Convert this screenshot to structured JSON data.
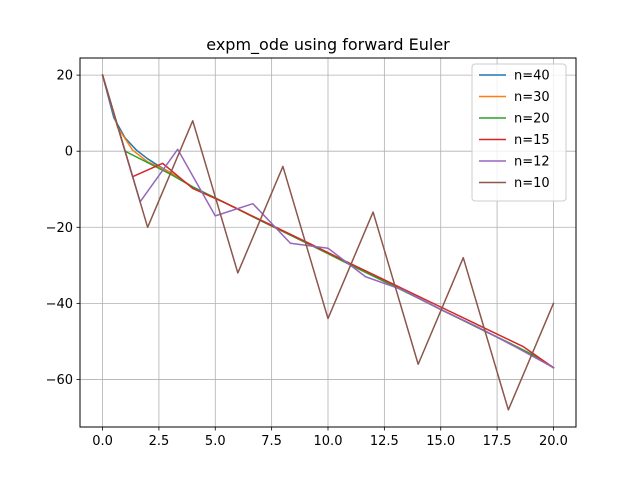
{
  "chart_data": {
    "type": "line",
    "title": "expm_ode using forward Euler",
    "xlabel": "",
    "ylabel": "",
    "xlim": [
      -1.0,
      21.0
    ],
    "ylim": [
      -72.5,
      24.5
    ],
    "xticks": [
      0.0,
      2.5,
      5.0,
      7.5,
      10.0,
      12.5,
      15.0,
      17.5,
      20.0
    ],
    "xtick_labels": [
      "0.0",
      "2.5",
      "5.0",
      "7.5",
      "10.0",
      "12.5",
      "15.0",
      "17.5",
      "20.0"
    ],
    "yticks": [
      20,
      0,
      -20,
      -40,
      -60
    ],
    "ytick_labels": [
      "20",
      "0",
      "−20",
      "−40",
      "−60"
    ],
    "grid": true,
    "legend_position": "top-right",
    "series": [
      {
        "name": "n=40",
        "color": "#1f77b4",
        "x": [
          0,
          0.5,
          1,
          1.5,
          2,
          2.5,
          3,
          3.5,
          4,
          5,
          6,
          7,
          8,
          9,
          10,
          11,
          12,
          13,
          14,
          15,
          16,
          17,
          18,
          19,
          20
        ],
        "y": [
          20,
          8.8,
          3.5,
          0.3,
          -2.0,
          -3.9,
          -5.6,
          -7.5,
          -9.4,
          -12.3,
          -15.2,
          -18.2,
          -21.1,
          -24.0,
          -26.9,
          -29.9,
          -32.8,
          -35.7,
          -38.6,
          -41.6,
          -44.5,
          -47.4,
          -50.3,
          -53.3,
          -56.9
        ]
      },
      {
        "name": "n=30",
        "color": "#ff7f0e",
        "x": [
          0,
          0.667,
          1.333,
          2,
          2.667,
          3.333,
          4,
          5,
          6,
          7,
          8,
          9,
          10,
          11,
          12,
          13,
          14,
          15,
          16,
          17,
          18,
          19,
          20
        ],
        "y": [
          20,
          6.3,
          0.3,
          -2.8,
          -4.6,
          -6.7,
          -9.5,
          -12.3,
          -15.2,
          -18.2,
          -21.1,
          -24.0,
          -26.9,
          -29.9,
          -32.8,
          -35.7,
          -38.6,
          -41.6,
          -44.5,
          -47.4,
          -50.3,
          -53.3,
          -56.9
        ]
      },
      {
        "name": "n=20",
        "color": "#2ca02c",
        "x": [
          0,
          1,
          2,
          3,
          4,
          5,
          6,
          7,
          8,
          9,
          10,
          11,
          12,
          13,
          14,
          15,
          16,
          17,
          18,
          19,
          20
        ],
        "y": [
          20,
          0,
          -3.0,
          -6.0,
          -9.4,
          -12.3,
          -15.2,
          -18.2,
          -21.1,
          -24.0,
          -26.9,
          -29.9,
          -32.8,
          -35.7,
          -38.6,
          -41.6,
          -44.5,
          -47.4,
          -50.3,
          -53.3,
          -56.9
        ]
      },
      {
        "name": "n=15",
        "color": "#d62728",
        "x": [
          0,
          1.333,
          2.667,
          4,
          5.333,
          6.667,
          8,
          9.333,
          10.667,
          12,
          13.333,
          14.667,
          16,
          17.333,
          18.667,
          20
        ],
        "y": [
          20,
          -6.7,
          -3.2,
          -9.8,
          -13.3,
          -17.1,
          -20.9,
          -24.7,
          -28.6,
          -32.4,
          -36.2,
          -40.0,
          -43.8,
          -47.6,
          -51.4,
          -56.9
        ]
      },
      {
        "name": "n=12",
        "color": "#9467bd",
        "x": [
          0,
          1.667,
          3.333,
          5,
          6.667,
          8.333,
          10,
          11.667,
          13.333,
          15,
          16.667,
          18.333,
          20
        ],
        "y": [
          20,
          -13.3,
          0.5,
          -17.0,
          -13.8,
          -24.2,
          -25.5,
          -33.0,
          -36.5,
          -41.6,
          -46.3,
          -51.5,
          -56.9
        ]
      },
      {
        "name": "n=10",
        "color": "#8c564b",
        "x": [
          0,
          2,
          4,
          6,
          8,
          10,
          12,
          14,
          16,
          18,
          20
        ],
        "y": [
          20,
          -20,
          8,
          -32,
          -4,
          -44,
          -16,
          -56,
          -28,
          -68,
          -40
        ]
      }
    ]
  }
}
